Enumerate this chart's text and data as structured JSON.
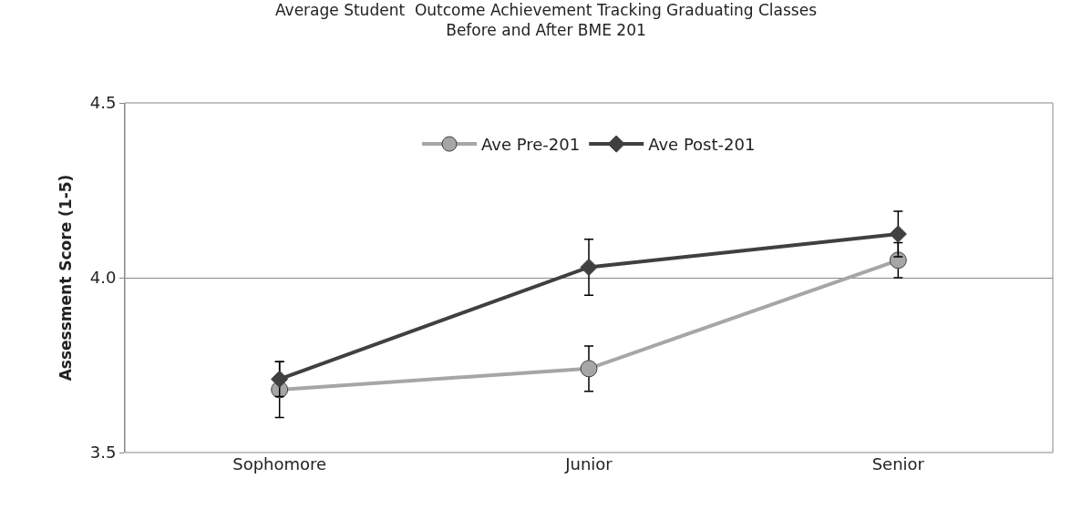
{
  "chart_data": {
    "type": "line",
    "title": "Average Student  Outcome Achievement Tracking Graduating Classes\nBefore and After BME 201",
    "ylabel": "Assessment Score (1-5)",
    "categories": [
      "Sophomore",
      "Junior",
      "Senior"
    ],
    "series": [
      {
        "name": "Ave Pre-201",
        "color": "#a6a6a6",
        "values": [
          3.68,
          3.74,
          4.05
        ],
        "errors": [
          0.08,
          0.065,
          0.05
        ],
        "marker": "circle"
      },
      {
        "name": "Ave Post-201",
        "color": "#404040",
        "values": [
          3.71,
          4.03,
          4.125
        ],
        "errors": [
          0.05,
          0.08,
          0.065
        ],
        "marker": "diamond"
      }
    ],
    "ylim": [
      3.5,
      4.5
    ],
    "yticks": [
      3.5,
      {
        "value": 4,
        "label": "4.0"
      },
      4.5
    ],
    "grid": "y",
    "legend": "top",
    "line_style": "solid"
  }
}
